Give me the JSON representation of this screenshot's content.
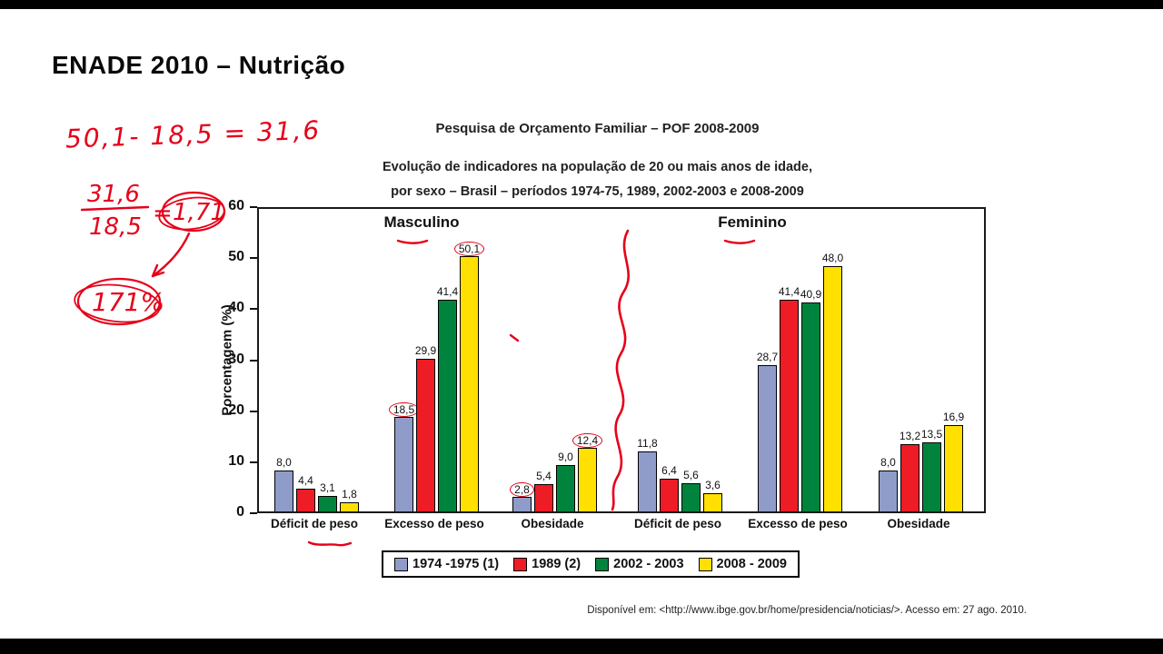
{
  "slide": {
    "title": "ENADE 2010 – Nutrição"
  },
  "annotations": {
    "calc_line": "50,1- 18,5 = 31,6",
    "fraction_numerator": "31,6",
    "fraction_denominator": "18,5",
    "fraction_equals": "=",
    "fraction_result": "1,71",
    "percent_result": "171%"
  },
  "chart_data": {
    "type": "bar",
    "title": "Pesquisa de Orçamento Familiar – POF 2008-2009",
    "subtitle_line1": "Evolução de indicadores na população de 20 ou mais anos de idade,",
    "subtitle_line2": "por sexo – Brasil – períodos 1974-75, 1989, 2002-2003 e 2008-2009",
    "ylabel": "Porcentagem (%)",
    "ylim": [
      0,
      60
    ],
    "yticks": [
      0,
      10,
      20,
      30,
      40,
      50,
      60
    ],
    "grid": false,
    "legend_position": "bottom",
    "group_headers": [
      "Masculino",
      "Feminino"
    ],
    "categories": [
      "Déficit de peso",
      "Excesso de peso",
      "Obesidade",
      "Déficit de peso",
      "Excesso de peso",
      "Obesidade"
    ],
    "series": [
      {
        "name": "1974 -1975 (1)",
        "color": "#8f9cc9",
        "values": [
          8.0,
          18.5,
          2.8,
          11.8,
          28.7,
          8.0
        ]
      },
      {
        "name": "1989 (2)",
        "color": "#ee1c25",
        "values": [
          4.4,
          29.9,
          5.4,
          6.4,
          41.4,
          13.2
        ]
      },
      {
        "name": "2002 - 2003",
        "color": "#00843d",
        "values": [
          3.1,
          41.4,
          9.0,
          5.6,
          40.9,
          13.5
        ]
      },
      {
        "name": "2008 - 2009",
        "color": "#ffe000",
        "values": [
          1.8,
          50.1,
          12.4,
          3.6,
          48.0,
          16.9
        ]
      }
    ],
    "circled_value_labels": [
      [
        1,
        0
      ],
      [
        1,
        3
      ],
      [
        2,
        0
      ],
      [
        2,
        3
      ]
    ],
    "annotation_color": "#e60019",
    "source": "Disponível em: <http://www.ibge.gov.br/home/presidencia/noticias/>. Acesso em: 27 ago. 2010."
  }
}
